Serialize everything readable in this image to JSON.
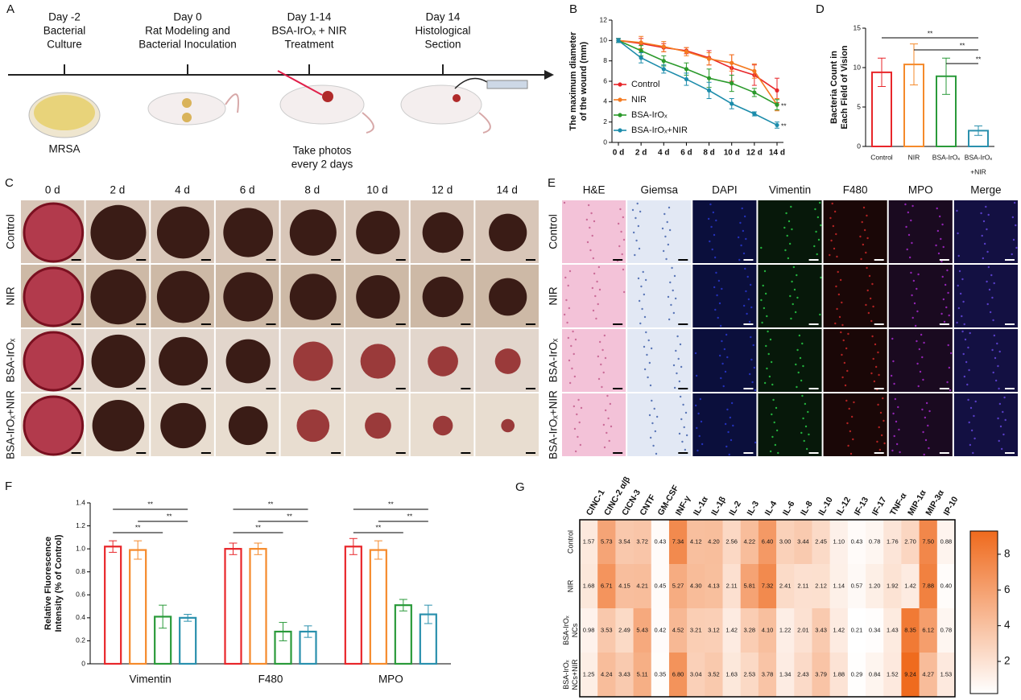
{
  "panel_labels": [
    "A",
    "B",
    "C",
    "D",
    "E",
    "F",
    "G"
  ],
  "timeline": {
    "steps": [
      [
        "Day -2",
        "Bacterial",
        "Culture"
      ],
      [
        "Day 0",
        "Rat Modeling and",
        "Bacterial Inoculation"
      ],
      [
        "Day 1-14",
        "BSA-IrOₓ + NIR",
        "Treatment"
      ],
      [
        "Day 14",
        "Histological",
        "Section"
      ]
    ],
    "caption": "MRSA",
    "note": [
      "Take photos",
      "every 2 days"
    ]
  },
  "wound_photos": {
    "columns": [
      "0 d",
      "2 d",
      "4 d",
      "6 d",
      "8 d",
      "10 d",
      "12 d",
      "14 d"
    ],
    "rows": [
      "Control",
      "NIR",
      "BSA-IrOₓ",
      "BSA-IrOₓ+NIR"
    ]
  },
  "staining": {
    "columns": [
      "H&E",
      "Giemsa",
      "DAPI",
      "Vimentin",
      "F480",
      "MPO",
      "Merge"
    ],
    "rows": [
      "Control",
      "NIR",
      "BSA-IrOₓ",
      "BSA-IrOₓ+NIR"
    ]
  },
  "chart_data": [
    {
      "type": "line",
      "ylabel": [
        "The maximum diameter",
        "of the wound (mm)"
      ],
      "categories": [
        "0 d",
        "2 d",
        "4 d",
        "6 d",
        "8 d",
        "10 d",
        "12 d",
        "14 d"
      ],
      "ylim": [
        0,
        12
      ],
      "yticks": [
        0,
        2,
        4,
        6,
        8,
        10,
        12
      ],
      "series": [
        {
          "name": "Control",
          "color": "#e8262a",
          "values": [
            10,
            9.7,
            9.3,
            9.0,
            8.3,
            7.3,
            6.6,
            5.1
          ],
          "errors": [
            0.2,
            0.5,
            0.4,
            0.3,
            0.7,
            1.3,
            1.0,
            1.2
          ]
        },
        {
          "name": "NIR",
          "color": "#f47a20",
          "values": [
            10,
            9.8,
            9.4,
            8.9,
            8.2,
            7.8,
            7.0,
            3.7
          ],
          "errors": [
            0.2,
            0.6,
            0.5,
            0.4,
            0.6,
            0.8,
            0.7,
            0.6
          ]
        },
        {
          "name": "BSA-IrOₓ",
          "color": "#2b9a2b",
          "values": [
            10,
            9.0,
            8.0,
            7.2,
            6.3,
            5.8,
            4.9,
            3.7
          ],
          "errors": [
            0.2,
            0.5,
            0.5,
            0.6,
            0.9,
            0.8,
            0.4,
            0.5
          ]
        },
        {
          "name": "BSA-IrOₓ+NIR",
          "color": "#1c8cab",
          "values": [
            10,
            8.3,
            7.2,
            6.2,
            5.1,
            3.8,
            2.8,
            1.7
          ],
          "errors": [
            0.2,
            0.5,
            0.4,
            0.6,
            0.8,
            0.5,
            0.2,
            0.3
          ]
        }
      ],
      "annotations": [
        "**",
        "**"
      ]
    },
    {
      "type": "bar",
      "ylabel": [
        "Bacteria Count in",
        "Each Field of Vision"
      ],
      "categories": [
        [
          "Control"
        ],
        [
          "NIR"
        ],
        [
          "BSA-IrOₓ"
        ],
        [
          "BSA-IrOₓ",
          "+NIR"
        ]
      ],
      "values": [
        9.4,
        10.4,
        8.9,
        2.0
      ],
      "errors": [
        1.8,
        2.6,
        2.3,
        0.6
      ],
      "colors": [
        "#e8262a",
        "#f58a2b",
        "#2a9a3a",
        "#2a90ad"
      ],
      "ylim": [
        0,
        15
      ],
      "yticks": [
        0,
        5,
        10,
        15
      ],
      "annotations": [
        "**",
        "**",
        "**"
      ]
    },
    {
      "type": "grouped_bar",
      "ylabel": [
        "Relative Fluorescence",
        "Intensity (% of Control)"
      ],
      "categories": [
        "Vimentin",
        "F480",
        "MPO"
      ],
      "series": [
        {
          "color": "#e8262a",
          "values": [
            1.02,
            1.0,
            1.02
          ],
          "errors": [
            0.05,
            0.05,
            0.07
          ]
        },
        {
          "color": "#f58a2b",
          "values": [
            0.99,
            1.0,
            0.99
          ],
          "errors": [
            0.08,
            0.05,
            0.08
          ]
        },
        {
          "color": "#2a9a3a",
          "values": [
            0.41,
            0.28,
            0.51
          ],
          "errors": [
            0.1,
            0.08,
            0.05
          ]
        },
        {
          "color": "#2a90ad",
          "values": [
            0.4,
            0.28,
            0.43
          ],
          "errors": [
            0.03,
            0.05,
            0.08
          ]
        }
      ],
      "ylim": [
        0,
        1.4
      ],
      "yticks": [
        0,
        0.2,
        0.4,
        0.6,
        0.8,
        {
          "value": 1,
          "label": "1.0"
        },
        1.2,
        1.4
      ],
      "annotations": [
        "**",
        "**",
        "**",
        "**",
        "**",
        "**",
        "**",
        "**",
        "**"
      ]
    },
    {
      "type": "heatmap",
      "columns": [
        "CINC-1",
        "CINC-2 α/β",
        "CICN-3",
        "CNTF",
        "GM-CSF",
        "INF-γ",
        "IL-1α",
        "IL-1β",
        "IL-2",
        "IL-3",
        "IL-4",
        "IL-6",
        "IL-8",
        "IL-10",
        "IL-12",
        "IF-13",
        "IF-17",
        "TNF-α",
        "MIP-1α",
        "MIP-3α",
        "IP-10"
      ],
      "rows": [
        [
          "Control"
        ],
        [
          "NIR"
        ],
        [
          "BSA-IrOₓ",
          "NCs"
        ],
        [
          "BSA-IrOₓ",
          "NCs+NIR"
        ]
      ],
      "values": [
        [
          1.57,
          5.73,
          3.54,
          3.72,
          0.43,
          7.34,
          4.12,
          4.2,
          2.56,
          4.22,
          6.4,
          3.0,
          3.44,
          2.45,
          1.1,
          0.43,
          0.78,
          1.76,
          2.7,
          7.5,
          0.88
        ],
        [
          1.68,
          6.71,
          4.15,
          4.21,
          0.45,
          5.27,
          4.3,
          4.13,
          2.11,
          5.81,
          7.32,
          2.41,
          2.11,
          2.12,
          1.14,
          0.57,
          1.2,
          1.92,
          1.42,
          7.88,
          0.4
        ],
        [
          0.98,
          3.53,
          2.49,
          5.43,
          0.42,
          4.52,
          3.21,
          3.12,
          1.42,
          3.28,
          4.1,
          1.22,
          2.01,
          3.43,
          1.42,
          0.21,
          0.34,
          1.43,
          8.35,
          6.12,
          0.78
        ],
        [
          1.25,
          4.24,
          3.43,
          5.11,
          0.35,
          6.8,
          3.04,
          3.52,
          1.63,
          2.53,
          3.78,
          1.34,
          2.43,
          3.79,
          1.88,
          0.29,
          0.84,
          1.52,
          9.24,
          4.27,
          1.53
        ]
      ],
      "value_labels": [
        [
          "1.57",
          "5.73",
          "3.54",
          "3.72",
          "0.43",
          "7.34",
          "4.12",
          "4.20",
          "2.56",
          "4.22",
          "6.40",
          "3.00",
          "3.44",
          "2.45",
          "1.10",
          "0.43",
          "0.78",
          "1.76",
          "2.70",
          "7.50",
          "0.88"
        ],
        [
          "1.68",
          "6.71",
          "4.15",
          "4.21",
          "0.45",
          "5.27",
          "4.30",
          "4.13",
          "2.11",
          "5.81",
          "7.32",
          "2.41",
          "2.11",
          "2.12",
          "1.14",
          "0.57",
          "1.20",
          "1.92",
          "1.42",
          "7.88",
          "0.40"
        ],
        [
          "0.98",
          "3.53",
          "2.49",
          "5.43",
          "0.42",
          "4.52",
          "3.21",
          "3.12",
          "1.42",
          "3.28",
          "4.10",
          "1.22",
          "2.01",
          "3.43",
          "1.42",
          "0.21",
          "0.34",
          "1.43",
          "8.35",
          "6.12",
          "0.78"
        ],
        [
          "1.25",
          "4.24",
          "3.43",
          "5.11",
          "0.35",
          "6.80",
          "3.04",
          "3.52",
          "1.63",
          "2.53",
          "3.78",
          "1.34",
          "2.43",
          "3.79",
          "1.88",
          "0.29",
          "0.84",
          "1.52",
          "9.24",
          "4.27",
          "1.53"
        ]
      ],
      "zlim": [
        0.2,
        9.3
      ],
      "zticks": [
        2,
        4,
        6,
        8
      ],
      "colors": [
        "#ffffff",
        "#ef6a1d"
      ]
    }
  ]
}
